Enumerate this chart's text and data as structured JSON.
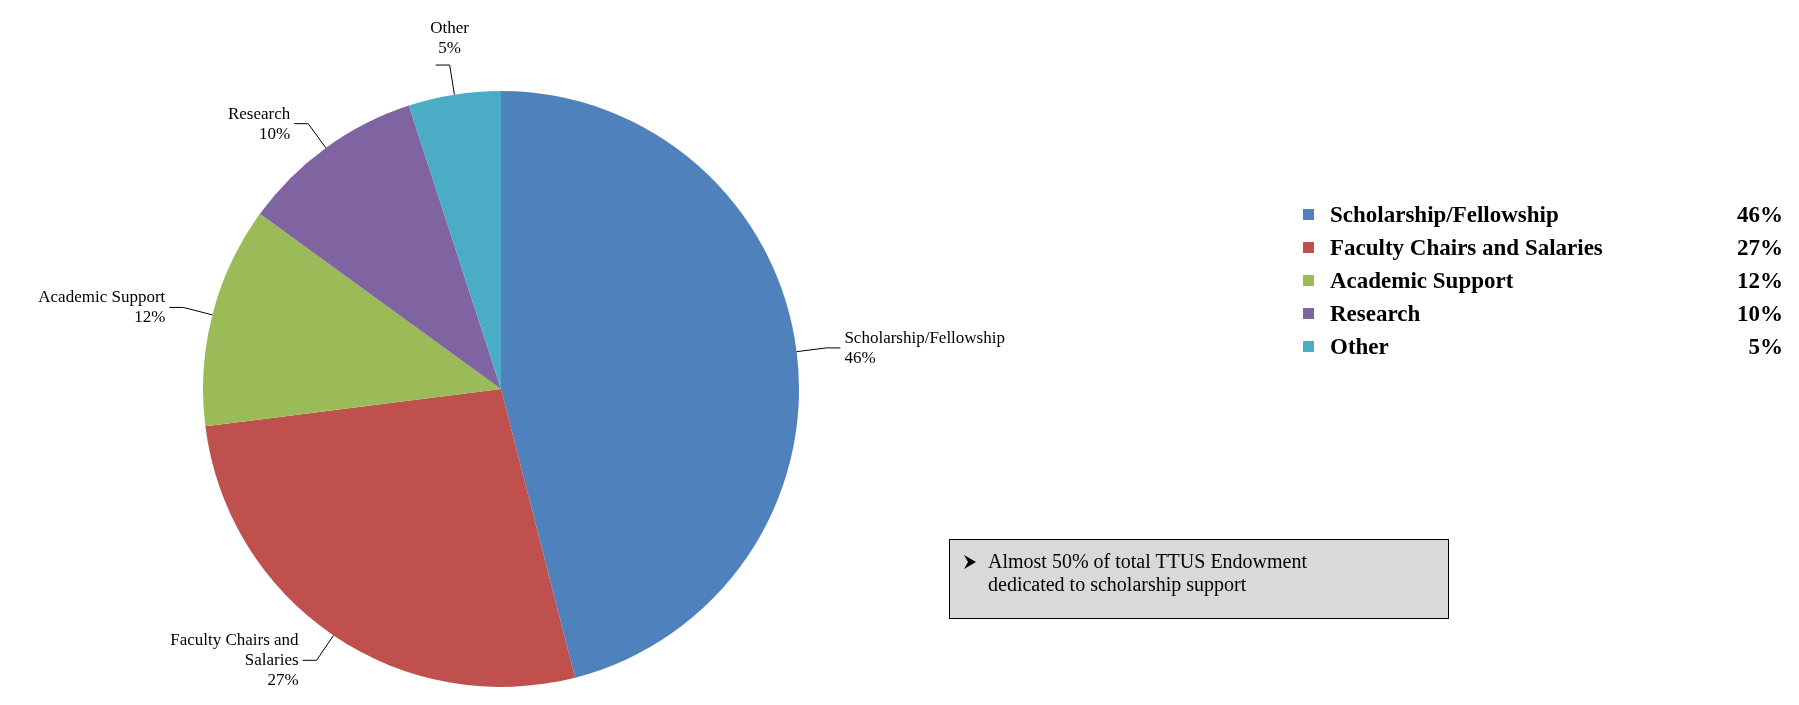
{
  "chart_data": {
    "type": "pie",
    "categories": [
      "Scholarship/Fellowship",
      "Faculty Chairs and Salaries",
      "Academic Support",
      "Research",
      "Other"
    ],
    "values": [
      46,
      27,
      12,
      10,
      5
    ],
    "value_labels": [
      "46%",
      "27%",
      "12%",
      "10%",
      "5%"
    ],
    "colors": [
      "#4f81bd",
      "#c0504d",
      "#9bbb59",
      "#8064a2",
      "#4bacc6"
    ],
    "legend": "right",
    "annotations": [
      "Almost 50% of total TTUS Endowment dedicated to scholarship support"
    ]
  }
}
